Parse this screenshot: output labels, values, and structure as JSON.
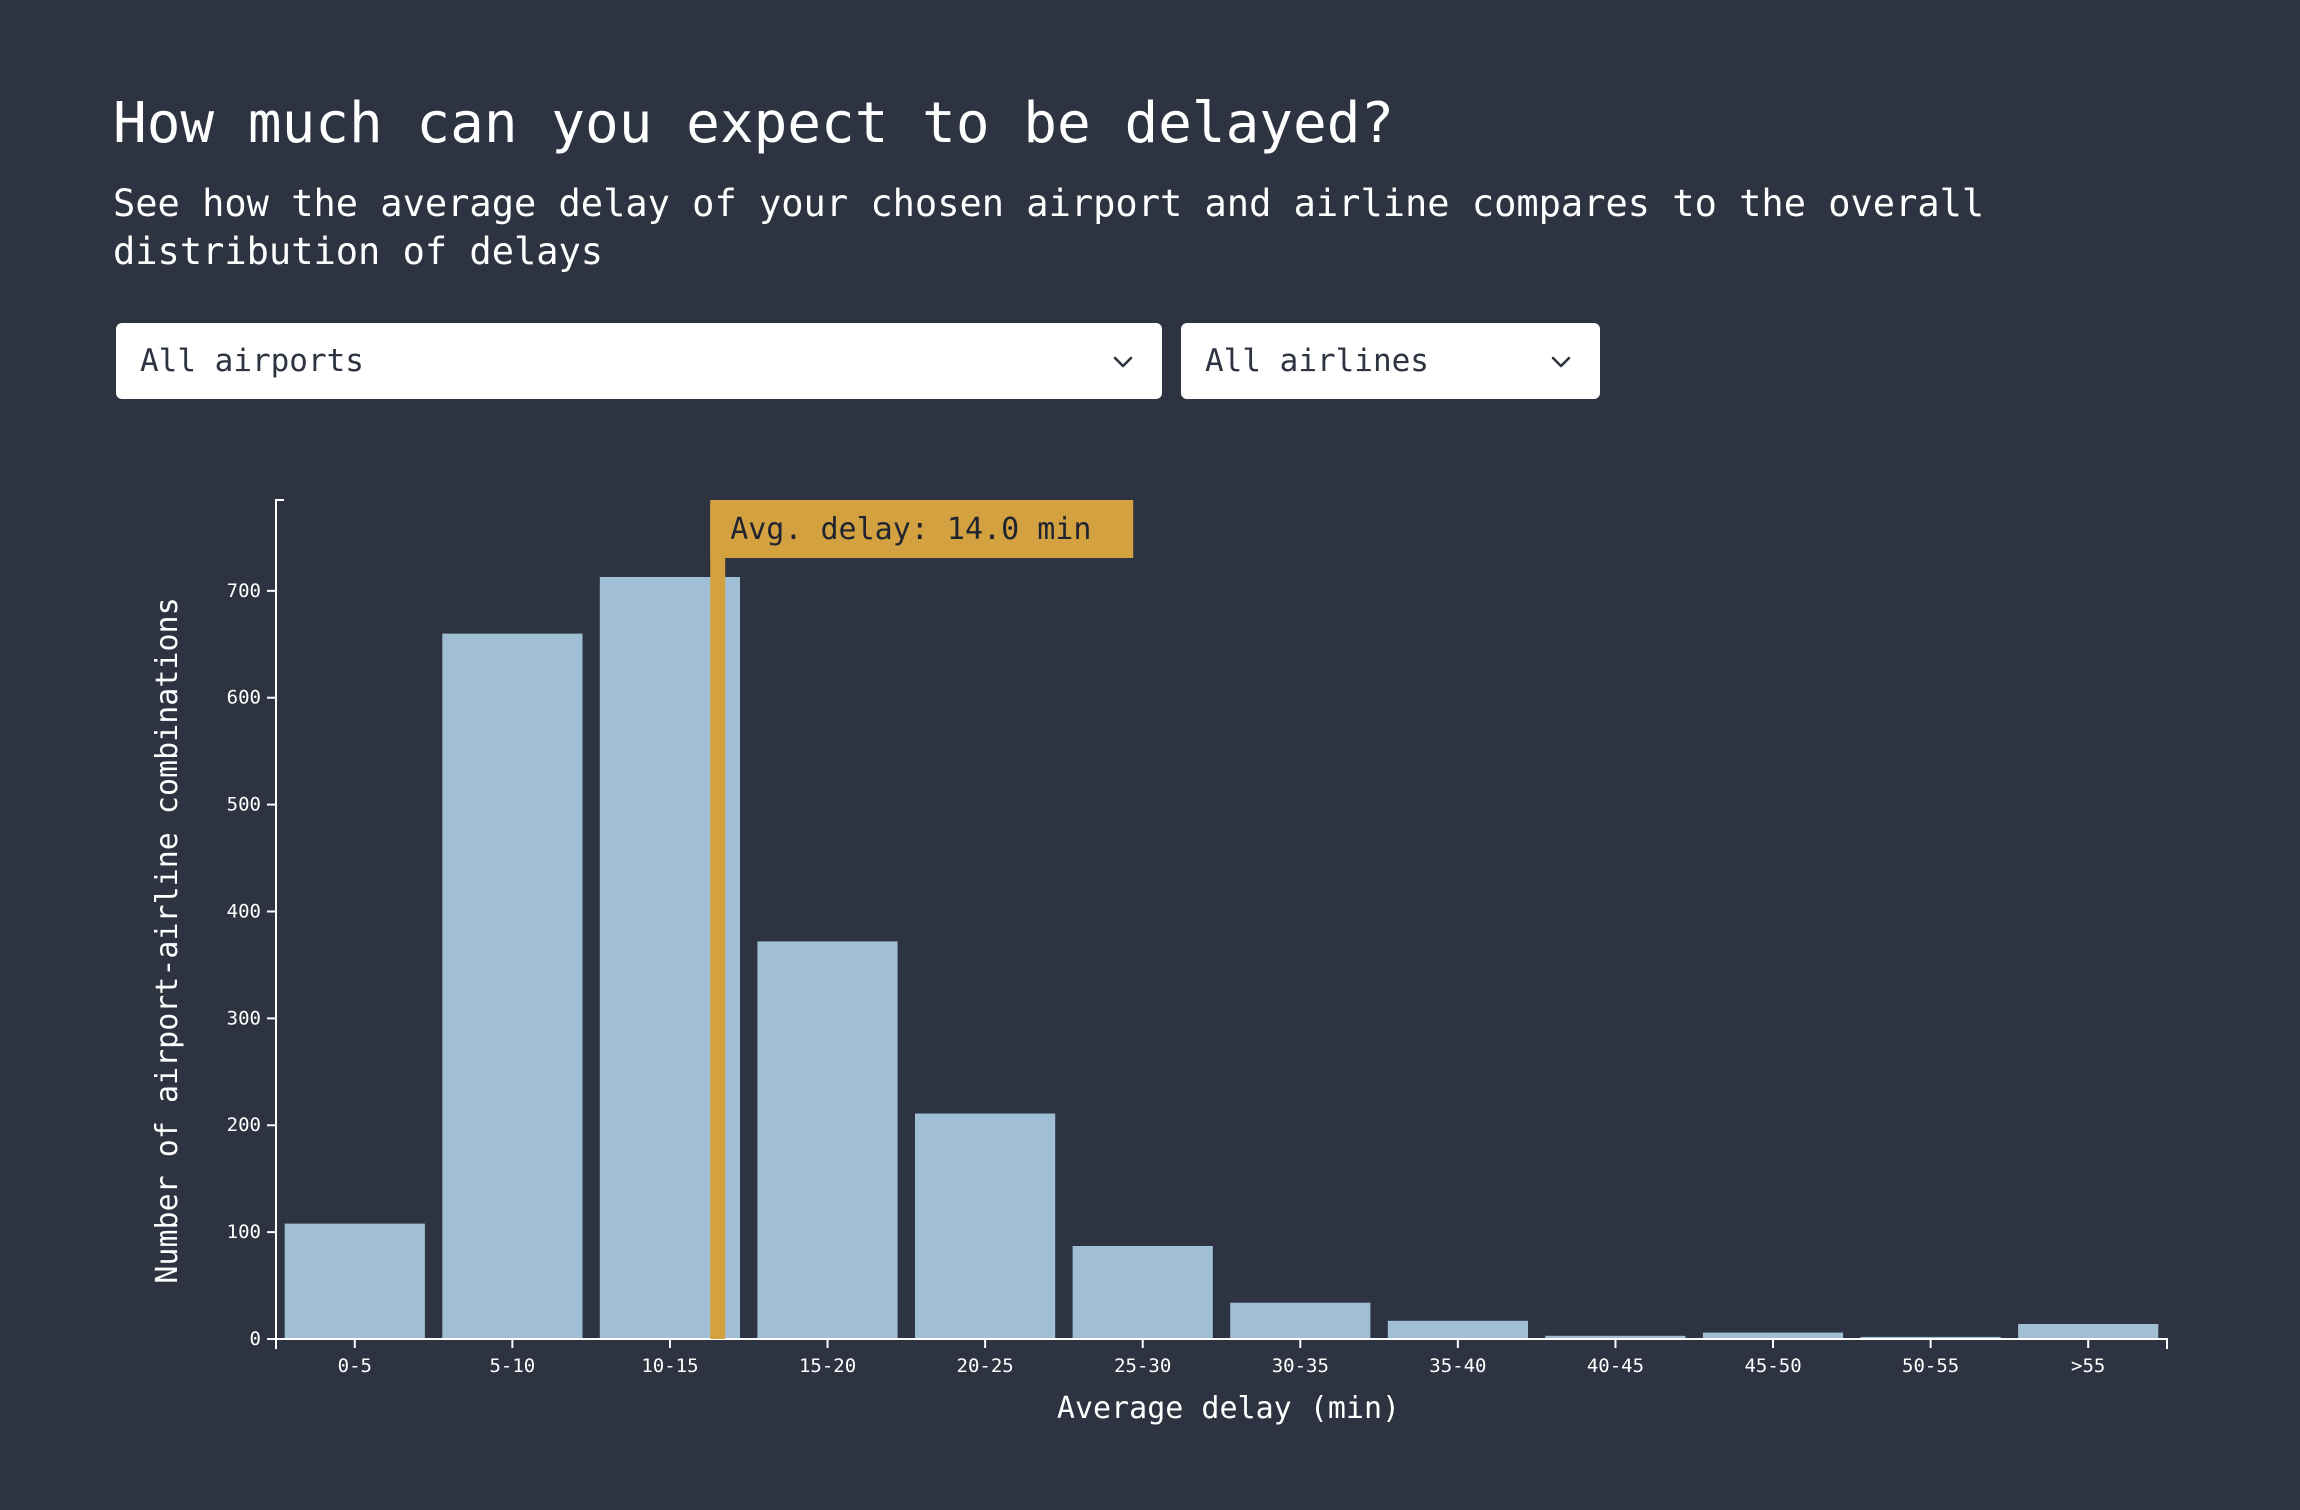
{
  "header": {
    "title": "How much can you expect to be delayed?",
    "subtitle": "See how the average delay of your chosen airport and airline compares to the overall distribution of delays"
  },
  "filters": {
    "airport": {
      "selected": "All airports",
      "icon": "chevron-down-icon"
    },
    "airline": {
      "selected": "All airlines",
      "icon": "chevron-down-icon"
    }
  },
  "colors": {
    "background": "#2d3340",
    "bar": "#a0bfd5",
    "marker": "#d4a140",
    "text": "#ffffff"
  },
  "chart_data": {
    "type": "bar",
    "categories": [
      "0-5",
      "5-10",
      "10-15",
      "15-20",
      "20-25",
      "25-30",
      "30-35",
      "35-40",
      "40-45",
      "45-50",
      "50-55",
      ">55"
    ],
    "values": [
      108,
      660,
      713,
      372,
      211,
      87,
      34,
      17,
      3,
      6,
      2,
      14
    ],
    "xlabel": "Average delay (min)",
    "ylabel": "Number of airport-airline combinations",
    "ylim": [
      0,
      785
    ],
    "yticks": [
      0,
      100,
      200,
      300,
      400,
      500,
      600,
      700
    ],
    "grid": false,
    "marker": {
      "value": 14.0,
      "label": "Avg. delay: 14.0 min"
    }
  }
}
